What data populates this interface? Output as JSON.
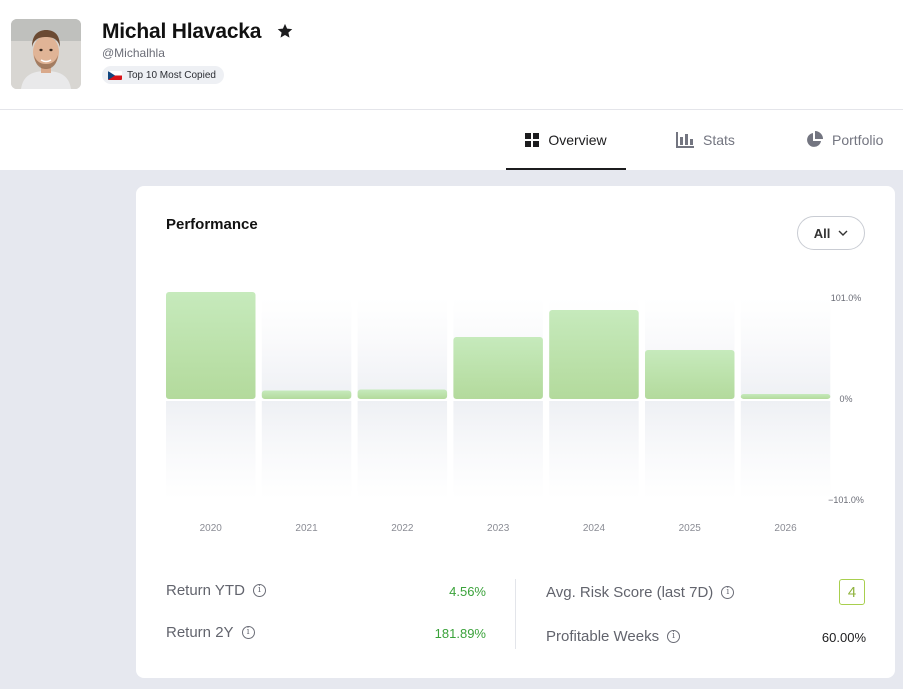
{
  "profile": {
    "name": "Michal Hlavacka",
    "handle": "@Michalhla",
    "badge": "Top 10 Most Copied",
    "flag_icon": "czech-flag-icon"
  },
  "tabs": [
    {
      "label": "Overview",
      "icon": "grid-icon",
      "active": true
    },
    {
      "label": "Stats",
      "icon": "bar-chart-icon",
      "active": false
    },
    {
      "label": "Portfolio",
      "icon": "pie-chart-icon",
      "active": false
    }
  ],
  "performance": {
    "title": "Performance",
    "range_select": "All"
  },
  "chart_data": {
    "type": "bar",
    "categories": [
      "2020",
      "2021",
      "2022",
      "2023",
      "2024",
      "2025",
      "2026"
    ],
    "values": [
      107.0,
      8.5,
      9.5,
      62.0,
      89.0,
      49.0,
      5.0
    ],
    "y_tick_labels": [
      "101.0%",
      "0%",
      "−101.0%"
    ],
    "ylim": [
      -101.0,
      101.0
    ],
    "colors": {
      "bar": "#b9e3ad",
      "bar_top": "#c6eabc"
    }
  },
  "stats": {
    "return_ytd_label": "Return YTD",
    "return_ytd_value": "4.56%",
    "return_2y_label": "Return 2Y",
    "return_2y_value": "181.89%",
    "risk_label": "Avg. Risk Score (last 7D)",
    "risk_value": "4",
    "profitable_weeks_label": "Profitable Weeks",
    "profitable_weeks_value": "60.00%"
  },
  "colors": {
    "positive": "#3aa23a",
    "risk_border": "#a8cf4e",
    "page_bg": "#e6e8ef"
  }
}
